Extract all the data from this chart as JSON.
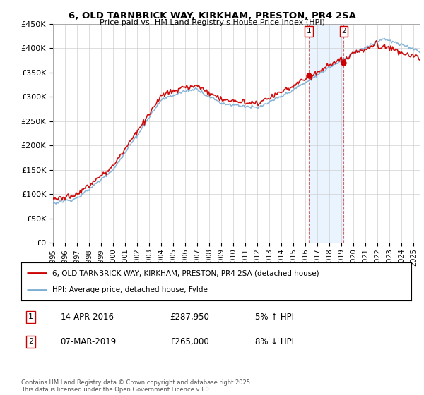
{
  "title": "6, OLD TARNBRICK WAY, KIRKHAM, PRESTON, PR4 2SA",
  "subtitle": "Price paid vs. HM Land Registry's House Price Index (HPI)",
  "ylabel_ticks": [
    "£0",
    "£50K",
    "£100K",
    "£150K",
    "£200K",
    "£250K",
    "£300K",
    "£350K",
    "£400K",
    "£450K"
  ],
  "ylim": [
    0,
    450000
  ],
  "xlim_start": 1995.0,
  "xlim_end": 2025.5,
  "red_line_color": "#cc0000",
  "blue_line_color": "#7aadd4",
  "shade_color": "#ddeeff",
  "sale1_date_num": 2016.28,
  "sale1_price": 287950,
  "sale2_date_num": 2019.18,
  "sale2_price": 265000,
  "legend_red_label": "6, OLD TARNBRICK WAY, KIRKHAM, PRESTON, PR4 2SA (detached house)",
  "legend_blue_label": "HPI: Average price, detached house, Fylde",
  "transaction1_date": "14-APR-2016",
  "transaction1_price": "£287,950",
  "transaction1_hpi": "5% ↑ HPI",
  "transaction2_date": "07-MAR-2019",
  "transaction2_price": "£265,000",
  "transaction2_hpi": "8% ↓ HPI",
  "footer": "Contains HM Land Registry data © Crown copyright and database right 2025.\nThis data is licensed under the Open Government Licence v3.0.",
  "background_color": "#ffffff",
  "grid_color": "#cccccc"
}
